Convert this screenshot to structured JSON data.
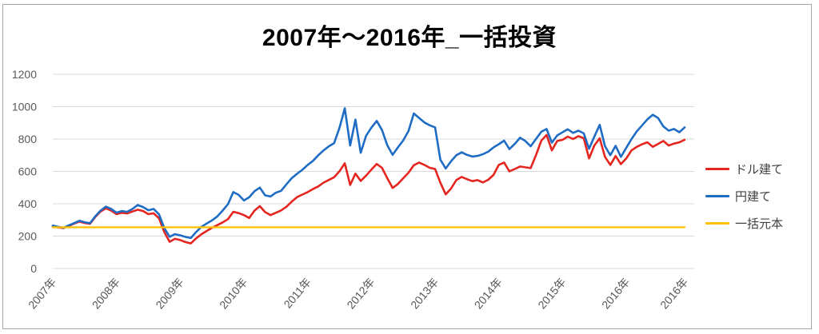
{
  "page": {
    "background": "#ffffff",
    "border_color": "#a6a6a6"
  },
  "chart_data": {
    "type": "line",
    "title": "2007年～2016年_一括投資",
    "legend_position": "right",
    "grid": {
      "horizontal": true,
      "color": "#d9d9d9"
    },
    "label_color": "#595959",
    "x_axis": {
      "unit": "month",
      "start": "2007-01",
      "end": "2016-12",
      "tick_labels": [
        "2007年",
        "2008年",
        "2009年",
        "2010年",
        "2011年",
        "2012年",
        "2013年",
        "2014年",
        "2015年",
        "2016年",
        "2016年"
      ],
      "tick_months": [
        0,
        12,
        24,
        36,
        48,
        60,
        72,
        84,
        96,
        108,
        119
      ]
    },
    "y_axis": {
      "min": 0,
      "max": 1200,
      "ticks": [
        0,
        200,
        400,
        600,
        800,
        1000,
        1200
      ]
    },
    "series": [
      {
        "name": "ドル建て",
        "color": "#e52520",
        "values": [
          260,
          254,
          250,
          263,
          277,
          290,
          281,
          276,
          318,
          352,
          372,
          358,
          336,
          344,
          340,
          352,
          363,
          355,
          336,
          341,
          310,
          225,
          165,
          183,
          176,
          163,
          155,
          186,
          212,
          232,
          252,
          268,
          285,
          305,
          350,
          342,
          330,
          312,
          358,
          385,
          348,
          330,
          344,
          359,
          381,
          413,
          441,
          457,
          472,
          491,
          507,
          531,
          547,
          564,
          601,
          650,
          516,
          586,
          541,
          574,
          611,
          646,
          622,
          558,
          498,
          522,
          558,
          592,
          638,
          655,
          640,
          622,
          615,
          530,
          458,
          494,
          546,
          566,
          552,
          540,
          546,
          532,
          548,
          578,
          640,
          655,
          600,
          615,
          630,
          625,
          620,
          700,
          790,
          825,
          730,
          788,
          795,
          815,
          800,
          818,
          805,
          680,
          760,
          805,
          690,
          640,
          695,
          645,
          680,
          730,
          752,
          768,
          780,
          752,
          770,
          788,
          760,
          772,
          780,
          795
        ]
      },
      {
        "name": "円建て",
        "color": "#1f6cc5",
        "values": [
          265,
          258,
          252,
          266,
          280,
          295,
          286,
          280,
          322,
          358,
          382,
          368,
          345,
          355,
          350,
          368,
          392,
          380,
          360,
          368,
          335,
          250,
          196,
          212,
          205,
          195,
          188,
          225,
          258,
          278,
          298,
          322,
          358,
          398,
          472,
          455,
          420,
          440,
          478,
          500,
          452,
          445,
          468,
          480,
          520,
          558,
          585,
          610,
          640,
          665,
          700,
          730,
          755,
          775,
          870,
          990,
          760,
          920,
          715,
          820,
          870,
          912,
          856,
          762,
          702,
          748,
          792,
          850,
          958,
          930,
          902,
          885,
          872,
          672,
          618,
          662,
          700,
          718,
          702,
          692,
          696,
          706,
          722,
          748,
          768,
          790,
          738,
          770,
          808,
          788,
          755,
          800,
          845,
          862,
          778,
          822,
          842,
          860,
          838,
          852,
          835,
          740,
          815,
          888,
          756,
          700,
          758,
          690,
          745,
          800,
          848,
          885,
          922,
          950,
          930,
          878,
          852,
          862,
          842,
          872
        ]
      },
      {
        "name": "一括元本",
        "color": "#ffc000",
        "constant_value": 255
      }
    ]
  }
}
